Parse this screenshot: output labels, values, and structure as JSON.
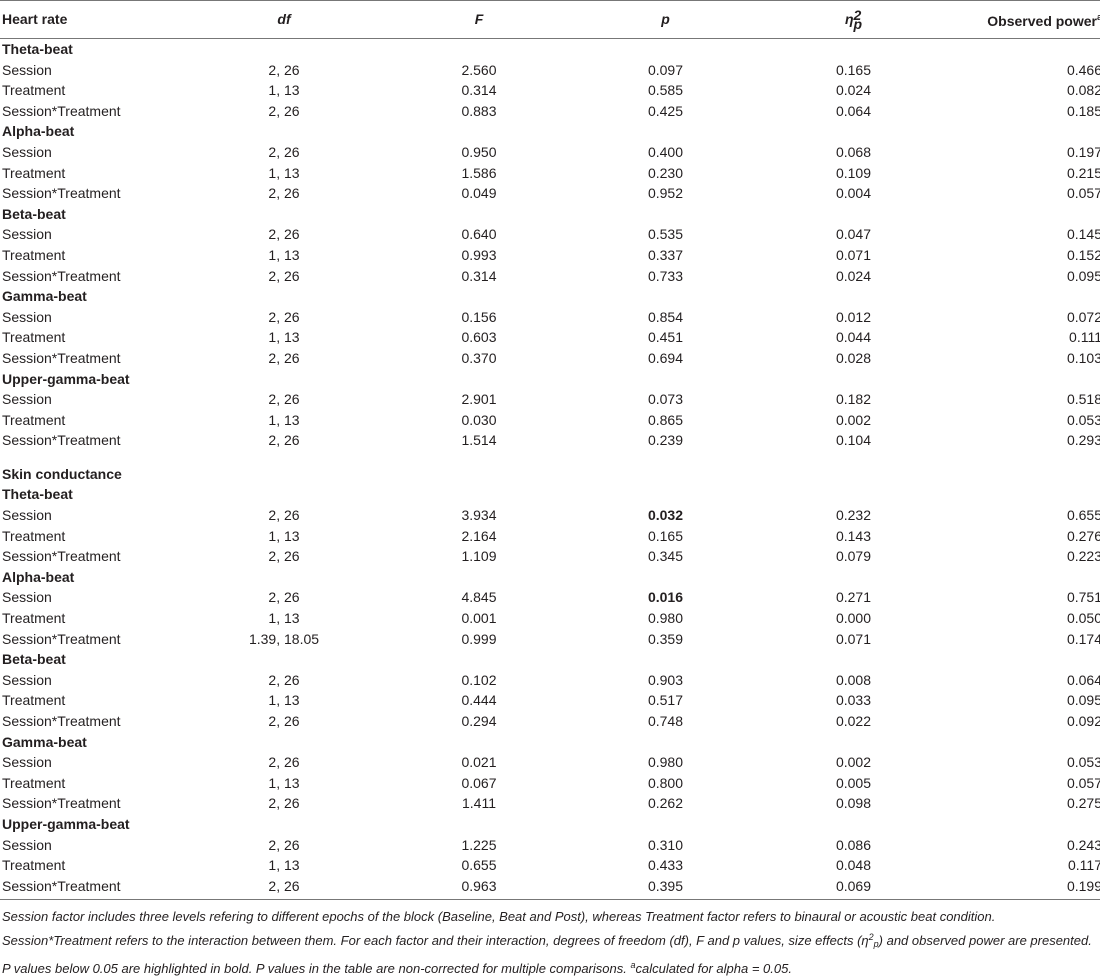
{
  "table": {
    "headers": {
      "measure": "Heart rate",
      "df": "df",
      "F": "F",
      "p": "p",
      "eta_symbol": "η",
      "eta_sup": "2",
      "eta_sub": "p",
      "power": "Observed power",
      "power_sup": "a"
    },
    "groups": [
      {
        "label": "Theta-beat",
        "rows": [
          [
            "Session",
            "2, 26",
            "2.560",
            "0.097",
            "0.165",
            "0.466"
          ],
          [
            "Treatment",
            "1, 13",
            "0.314",
            "0.585",
            "0.024",
            "0.082"
          ],
          [
            "Session*Treatment",
            "2, 26",
            "0.883",
            "0.425",
            "0.064",
            "0.185"
          ]
        ]
      },
      {
        "label": "Alpha-beat",
        "rows": [
          [
            "Session",
            "2, 26",
            "0.950",
            "0.400",
            "0.068",
            "0.197"
          ],
          [
            "Treatment",
            "1, 13",
            "1.586",
            "0.230",
            "0.109",
            "0.215"
          ],
          [
            "Session*Treatment",
            "2, 26",
            "0.049",
            "0.952",
            "0.004",
            "0.057"
          ]
        ]
      },
      {
        "label": "Beta-beat",
        "rows": [
          [
            "Session",
            "2, 26",
            "0.640",
            "0.535",
            "0.047",
            "0.145"
          ],
          [
            "Treatment",
            "1, 13",
            "0.993",
            "0.337",
            "0.071",
            "0.152"
          ],
          [
            "Session*Treatment",
            "2, 26",
            "0.314",
            "0.733",
            "0.024",
            "0.095"
          ]
        ]
      },
      {
        "label": "Gamma-beat",
        "rows": [
          [
            "Session",
            "2, 26",
            "0.156",
            "0.854",
            "0.012",
            "0.072"
          ],
          [
            "Treatment",
            "1, 13",
            "0.603",
            "0.451",
            "0.044",
            "0.111"
          ],
          [
            "Session*Treatment",
            "2, 26",
            "0.370",
            "0.694",
            "0.028",
            "0.103"
          ]
        ]
      },
      {
        "label": "Upper-gamma-beat",
        "rows": [
          [
            "Session",
            "2, 26",
            "2.901",
            "0.073",
            "0.182",
            "0.518"
          ],
          [
            "Treatment",
            "1, 13",
            "0.030",
            "0.865",
            "0.002",
            "0.053"
          ],
          [
            "Session*Treatment",
            "2, 26",
            "1.514",
            "0.239",
            "0.104",
            "0.293"
          ]
        ]
      }
    ],
    "section2_title": "Skin conductance",
    "groups2": [
      {
        "label": "Theta-beat",
        "rows": [
          [
            "Session",
            "2, 26",
            "3.934",
            "0.032",
            "0.232",
            "0.655"
          ],
          [
            "Treatment",
            "1, 13",
            "2.164",
            "0.165",
            "0.143",
            "0.276"
          ],
          [
            "Session*Treatment",
            "2, 26",
            "1.109",
            "0.345",
            "0.079",
            "0.223"
          ]
        ]
      },
      {
        "label": "Alpha-beat",
        "rows": [
          [
            "Session",
            "2, 26",
            "4.845",
            "0.016",
            "0.271",
            "0.751"
          ],
          [
            "Treatment",
            "1, 13",
            "0.001",
            "0.980",
            "0.000",
            "0.050"
          ],
          [
            "Session*Treatment",
            "1.39, 18.05",
            "0.999",
            "0.359",
            "0.071",
            "0.174"
          ]
        ]
      },
      {
        "label": "Beta-beat",
        "rows": [
          [
            "Session",
            "2, 26",
            "0.102",
            "0.903",
            "0.008",
            "0.064"
          ],
          [
            "Treatment",
            "1, 13",
            "0.444",
            "0.517",
            "0.033",
            "0.095"
          ],
          [
            "Session*Treatment",
            "2, 26",
            "0.294",
            "0.748",
            "0.022",
            "0.092"
          ]
        ]
      },
      {
        "label": "Gamma-beat",
        "rows": [
          [
            "Session",
            "2, 26",
            "0.021",
            "0.980",
            "0.002",
            "0.053"
          ],
          [
            "Treatment",
            "1, 13",
            "0.067",
            "0.800",
            "0.005",
            "0.057"
          ],
          [
            "Session*Treatment",
            "2, 26",
            "1.411",
            "0.262",
            "0.098",
            "0.275"
          ]
        ]
      },
      {
        "label": "Upper-gamma-beat",
        "rows": [
          [
            "Session",
            "2, 26",
            "1.225",
            "0.310",
            "0.086",
            "0.243"
          ],
          [
            "Treatment",
            "1, 13",
            "0.655",
            "0.433",
            "0.048",
            "0.117"
          ],
          [
            "Session*Treatment",
            "2, 26",
            "0.963",
            "0.395",
            "0.069",
            "0.199"
          ]
        ]
      }
    ],
    "bold_p_values": [
      "0.032",
      "0.016"
    ]
  },
  "footnote": {
    "part1": "Session factor includes three levels refering to different epochs of the block (Baseline, Beat and Post), whereas Treatment factor refers to binaural or acoustic beat condition. Session*Treatment refers to the interaction between them. For each factor and their interaction, degrees of freedom (df), F and p values, size effects (",
    "eta": "η",
    "eta_sup": "2",
    "eta_sub": "p",
    "part2": ") and observed power are presented. P values below 0.05 are highlighted in bold. P values in the table are non-corrected for multiple comparisons. ",
    "a_marker": "a",
    "part3": "calculated for alpha = 0.05."
  }
}
